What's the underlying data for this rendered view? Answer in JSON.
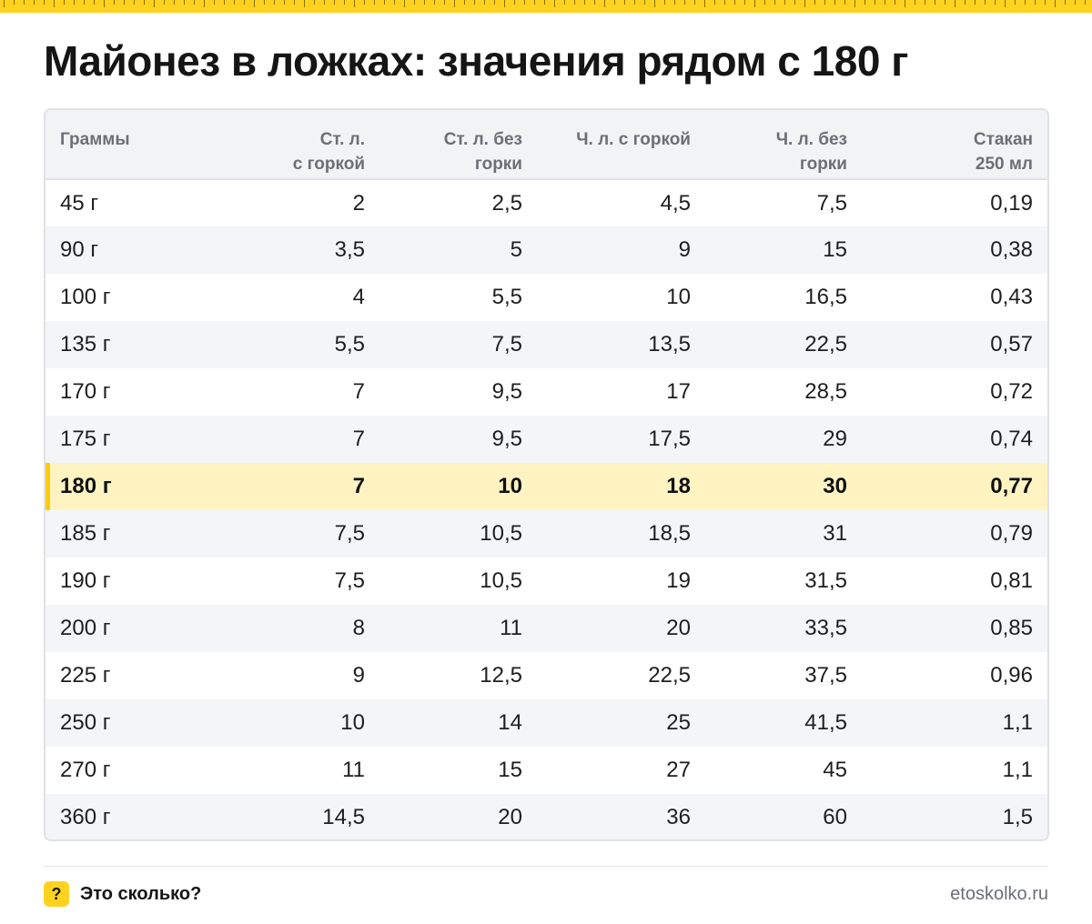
{
  "title": "Майонез в ложках: значения рядом с 180 г",
  "colors": {
    "accent": "#ffd21f",
    "highlight_row": "#fff3c2",
    "header_bg": "#f2f3f5",
    "border": "#dfe1e4"
  },
  "chart_data": {
    "type": "table",
    "title": "Майонез в ложках: значения рядом с 180 г",
    "columns": [
      [
        "Граммы"
      ],
      [
        "Ст. л.",
        "с горкой"
      ],
      [
        "Ст. л. без",
        "горки"
      ],
      [
        "Ч. л. с горкой"
      ],
      [
        "Ч. л. без",
        "горки"
      ],
      [
        "Стакан",
        "250 мл"
      ]
    ],
    "highlight_row_index": 6,
    "rows": [
      [
        "45 г",
        "2",
        "2,5",
        "4,5",
        "7,5",
        "0,19"
      ],
      [
        "90 г",
        "3,5",
        "5",
        "9",
        "15",
        "0,38"
      ],
      [
        "100 г",
        "4",
        "5,5",
        "10",
        "16,5",
        "0,43"
      ],
      [
        "135 г",
        "5,5",
        "7,5",
        "13,5",
        "22,5",
        "0,57"
      ],
      [
        "170 г",
        "7",
        "9,5",
        "17",
        "28,5",
        "0,72"
      ],
      [
        "175 г",
        "7",
        "9,5",
        "17,5",
        "29",
        "0,74"
      ],
      [
        "180 г",
        "7",
        "10",
        "18",
        "30",
        "0,77"
      ],
      [
        "185 г",
        "7,5",
        "10,5",
        "18,5",
        "31",
        "0,79"
      ],
      [
        "190 г",
        "7,5",
        "10,5",
        "19",
        "31,5",
        "0,81"
      ],
      [
        "200 г",
        "8",
        "11",
        "20",
        "33,5",
        "0,85"
      ],
      [
        "225 г",
        "9",
        "12,5",
        "22,5",
        "37,5",
        "0,96"
      ],
      [
        "250 г",
        "10",
        "14",
        "25",
        "41,5",
        "1,1"
      ],
      [
        "270 г",
        "11",
        "15",
        "27",
        "45",
        "1,1"
      ],
      [
        "360 г",
        "14,5",
        "20",
        "36",
        "60",
        "1,5"
      ]
    ]
  },
  "footer": {
    "badge": "?",
    "brand": "Это сколько?",
    "site": "etoskolko.ru"
  }
}
